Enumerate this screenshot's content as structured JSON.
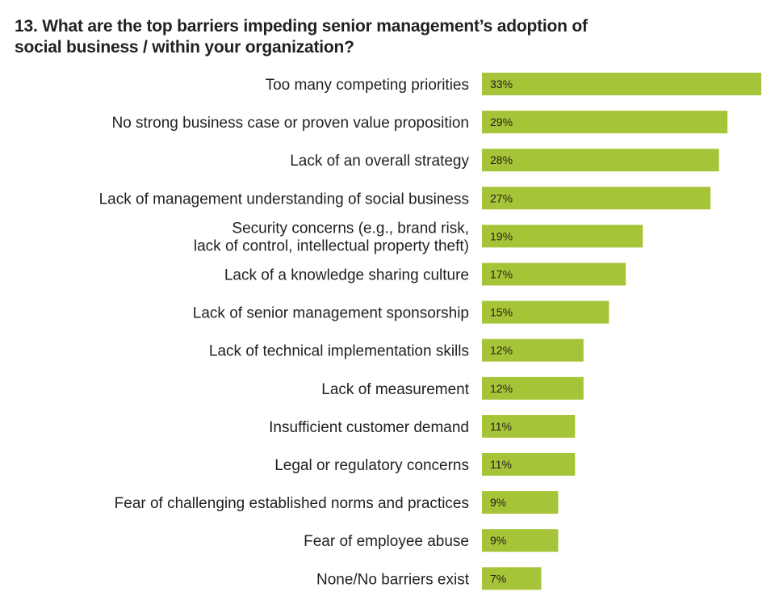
{
  "chart_data": {
    "type": "bar",
    "orientation": "horizontal",
    "title": "13. What are the top barriers impeding senior management’s adoption of social business / within your organization?",
    "title_lines": [
      "13. What are the top barriers impeding senior management’s adoption of",
      "social business / within your organization?"
    ],
    "xlabel": "",
    "ylabel": "",
    "xlim": [
      0,
      33
    ],
    "grid": false,
    "legend": "none",
    "bar_color": "#a6c437",
    "categories": [
      "Too many competing priorities",
      "No strong business case or proven value proposition",
      "Lack of an overall strategy",
      "Lack of management understanding of social business",
      "Security concerns (e.g., brand risk, lack of control, intellectual property theft)",
      "Lack of a knowledge sharing culture",
      "Lack of senior management sponsorship",
      "Lack of technical implementation skills",
      "Lack of measurement",
      "Insufficient customer demand",
      "Legal or regulatory concerns",
      "Fear of challenging established norms and practices",
      "Fear of employee abuse",
      "None/No barriers exist"
    ],
    "category_lines": [
      [
        "Too many competing priorities"
      ],
      [
        "No strong business case or proven value proposition"
      ],
      [
        "Lack of an overall strategy"
      ],
      [
        "Lack of management understanding of social business"
      ],
      [
        "Security concerns (e.g., brand risk,",
        "lack of control, intellectual property theft)"
      ],
      [
        "Lack of a knowledge sharing culture"
      ],
      [
        "Lack of senior management sponsorship"
      ],
      [
        "Lack of technical implementation skills"
      ],
      [
        "Lack of measurement"
      ],
      [
        "Insufficient customer demand"
      ],
      [
        "Legal or regulatory concerns"
      ],
      [
        "Fear of challenging established norms and practices"
      ],
      [
        "Fear of employee abuse"
      ],
      [
        "None/No barriers exist"
      ]
    ],
    "values": [
      33,
      29,
      28,
      27,
      19,
      17,
      15,
      12,
      12,
      11,
      11,
      9,
      9,
      7
    ],
    "value_labels": [
      "33%",
      "29%",
      "28%",
      "27%",
      "19%",
      "17%",
      "15%",
      "12%",
      "12%",
      "11%",
      "11%",
      "9%",
      "9%",
      "7%"
    ]
  }
}
